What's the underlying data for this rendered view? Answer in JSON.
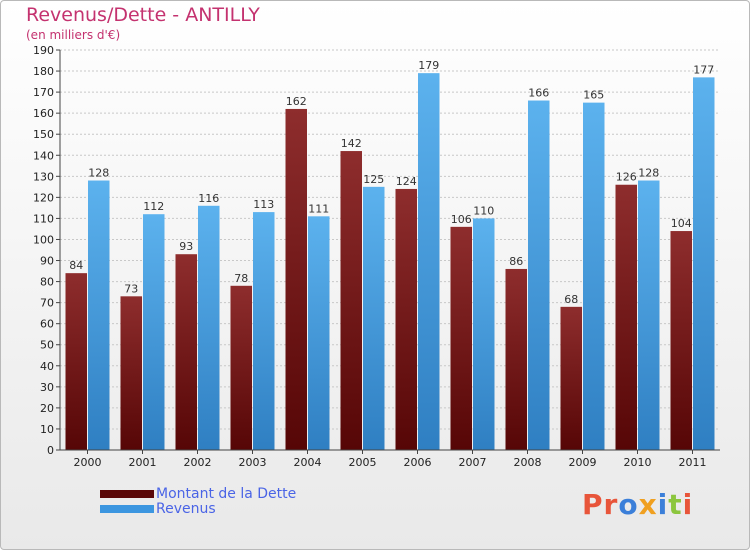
{
  "header": {
    "title": "Revenus/Dette - ANTILLY",
    "subtitle": "(en milliers d'€)"
  },
  "logo": {
    "text": "Proxiti"
  },
  "colors": {
    "dette": "#7a1f1f",
    "revenus": "#4ea3e6"
  },
  "chart_data": {
    "type": "bar",
    "title": "Revenus/Dette - ANTILLY",
    "ylabel": "",
    "xlabel": "",
    "ylim": [
      0,
      190
    ],
    "yticks": [
      0,
      10,
      20,
      30,
      40,
      50,
      60,
      70,
      80,
      90,
      100,
      110,
      120,
      130,
      140,
      150,
      160,
      170,
      180,
      190
    ],
    "grid": true,
    "legend_position": "bottom-left",
    "categories": [
      "2000",
      "2001",
      "2002",
      "2003",
      "2004",
      "2005",
      "2006",
      "2007",
      "2008",
      "2009",
      "2010",
      "2011"
    ],
    "series": [
      {
        "name": "Montant de la Dette",
        "values": [
          84,
          73,
          93,
          78,
          162,
          142,
          124,
          106,
          86,
          68,
          126,
          104
        ]
      },
      {
        "name": "Revenus",
        "values": [
          128,
          112,
          116,
          113,
          111,
          125,
          179,
          110,
          166,
          165,
          128,
          177
        ]
      }
    ]
  }
}
